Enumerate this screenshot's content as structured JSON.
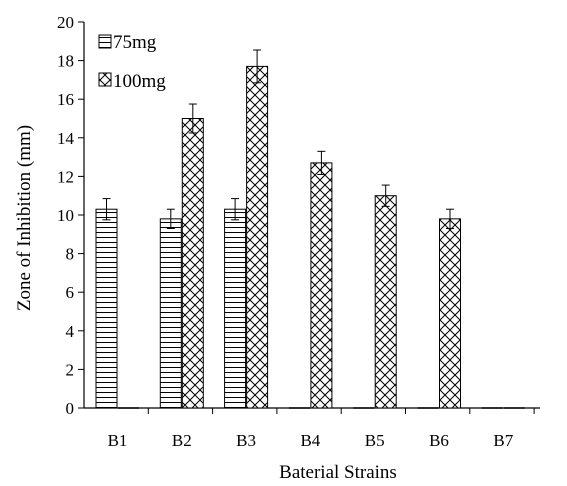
{
  "chart_data": {
    "type": "bar",
    "title": "",
    "xlabel": "Baterial Strains",
    "ylabel": "Zone of Inhibition (mm)",
    "ylim": [
      0,
      20
    ],
    "yticks": [
      "0",
      "2",
      "4",
      "6",
      "8",
      "10",
      "12",
      "14",
      "16",
      "18",
      "20"
    ],
    "categories": [
      "B1",
      "B2",
      "B3",
      "B4",
      "B5",
      "B6",
      "B7"
    ],
    "series": [
      {
        "name": "75mg",
        "pattern": "horizontal-lines",
        "values": [
          10.3,
          9.8,
          10.3,
          0,
          0,
          0,
          0
        ],
        "errors": [
          0.55,
          0.5,
          0.55,
          null,
          null,
          null,
          null
        ]
      },
      {
        "name": "100mg",
        "pattern": "crosshatch",
        "values": [
          0,
          15.0,
          17.7,
          12.7,
          11.0,
          9.8,
          0
        ],
        "errors": [
          null,
          0.75,
          0.85,
          0.6,
          0.55,
          0.5,
          null
        ]
      }
    ],
    "legend_position": "top-left",
    "grid": false,
    "colors": {
      "bar_fill": "#ffffff",
      "stroke": "#000000"
    }
  }
}
